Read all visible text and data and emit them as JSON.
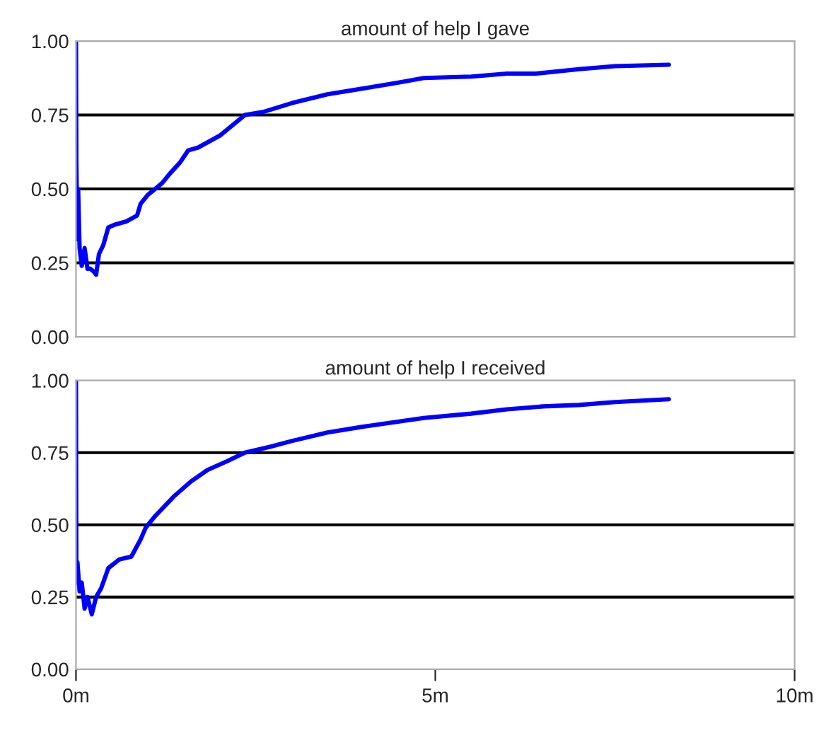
{
  "chart_data": [
    {
      "type": "line",
      "title": "amount of help I gave",
      "x": [
        0,
        0.005,
        0.01,
        0.02,
        0.03,
        0.05,
        0.08,
        0.12,
        0.16,
        0.2,
        0.25,
        0.28,
        0.32,
        0.38,
        0.45,
        0.55,
        0.7,
        0.85,
        0.9,
        1.0,
        1.1,
        1.2,
        1.3,
        1.45,
        1.56,
        1.7,
        2.0,
        2.35,
        2.6,
        3.0,
        3.5,
        4.0,
        4.5,
        4.84,
        5.5,
        6.0,
        6.4,
        7.0,
        7.5,
        8.25
      ],
      "series": [
        {
          "color": "#0000ff",
          "values": [
            1.0,
            0.6,
            0.5,
            0.33,
            0.5,
            0.3,
            0.24,
            0.3,
            0.23,
            0.23,
            0.22,
            0.21,
            0.28,
            0.31,
            0.37,
            0.38,
            0.39,
            0.41,
            0.45,
            0.48,
            0.5,
            0.52,
            0.55,
            0.59,
            0.63,
            0.64,
            0.68,
            0.75,
            0.76,
            0.79,
            0.82,
            0.84,
            0.86,
            0.875,
            0.88,
            0.89,
            0.89,
            0.905,
            0.915,
            0.92
          ]
        }
      ],
      "xlim": [
        0,
        10
      ],
      "ylim": [
        0,
        1
      ],
      "yticks": [
        {
          "value": 0,
          "label": "0.00"
        },
        {
          "value": 0.25,
          "label": "0.25"
        },
        {
          "value": 0.5,
          "label": "0.50"
        },
        {
          "value": 0.75,
          "label": "0.75"
        },
        {
          "value": 1,
          "label": "1.00"
        }
      ],
      "tick_labels": "y",
      "marker": "none",
      "line_style": "solid",
      "grid": false,
      "ref_lines": [
        {
          "axis": "y",
          "value": 0.25,
          "color": "#000000"
        },
        {
          "axis": "y",
          "value": 0.5,
          "color": "#000000"
        },
        {
          "axis": "y",
          "value": 0.75,
          "color": "#000000"
        }
      ]
    },
    {
      "type": "line",
      "title": "amount of help I received",
      "x": [
        0,
        0.005,
        0.02,
        0.05,
        0.08,
        0.12,
        0.16,
        0.22,
        0.28,
        0.35,
        0.45,
        0.6,
        0.77,
        0.9,
        0.97,
        1.1,
        1.37,
        1.6,
        1.83,
        2.1,
        2.35,
        2.7,
        3.0,
        3.5,
        4.0,
        4.84,
        5.5,
        6.0,
        6.5,
        7.0,
        7.5,
        8.25
      ],
      "series": [
        {
          "color": "#0000ff",
          "values": [
            1.0,
            0.3,
            0.37,
            0.27,
            0.3,
            0.21,
            0.25,
            0.19,
            0.25,
            0.28,
            0.35,
            0.38,
            0.39,
            0.45,
            0.49,
            0.53,
            0.6,
            0.65,
            0.69,
            0.72,
            0.75,
            0.77,
            0.79,
            0.82,
            0.84,
            0.87,
            0.885,
            0.9,
            0.91,
            0.915,
            0.925,
            0.935
          ]
        }
      ],
      "xlim": [
        0,
        10
      ],
      "xticks": [
        {
          "value": 0,
          "label": "0m"
        },
        {
          "value": 5,
          "label": "5m"
        },
        {
          "value": 10,
          "label": "10m"
        }
      ],
      "ylim": [
        0,
        1
      ],
      "yticks": [
        {
          "value": 0,
          "label": "0.00"
        },
        {
          "value": 0.25,
          "label": "0.25"
        },
        {
          "value": 0.5,
          "label": "0.50"
        },
        {
          "value": 0.75,
          "label": "0.75"
        },
        {
          "value": 1,
          "label": "1.00"
        }
      ],
      "marker": "none",
      "line_style": "solid",
      "grid": false,
      "ref_lines": [
        {
          "axis": "y",
          "value": 0.25,
          "color": "#000000"
        },
        {
          "axis": "y",
          "value": 0.5,
          "color": "#000000"
        },
        {
          "axis": "y",
          "value": 0.75,
          "color": "#000000"
        }
      ]
    }
  ]
}
